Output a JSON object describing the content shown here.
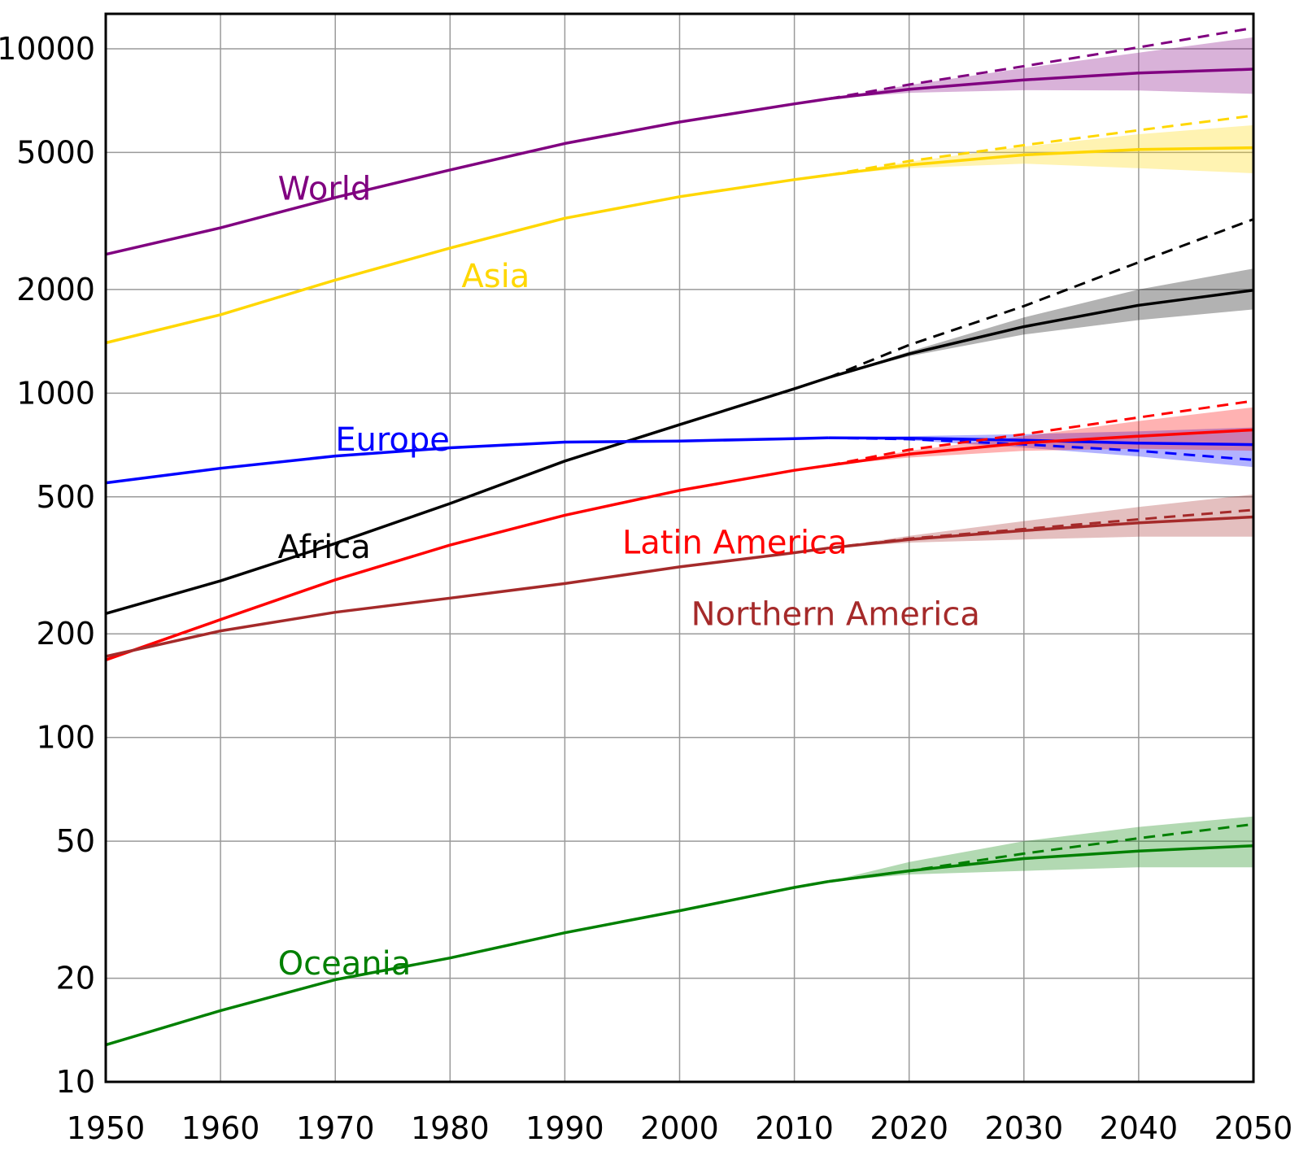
{
  "chart_data": {
    "type": "line",
    "title": "",
    "xlabel": "",
    "ylabel": "",
    "xlim": [
      1950,
      2050
    ],
    "ylim": [
      10,
      14000
    ],
    "y_scale": "log",
    "grid": true,
    "x_ticks": [
      1950,
      1960,
      1970,
      1980,
      1990,
      2000,
      2010,
      2020,
      2030,
      2040,
      2050
    ],
    "x_tick_labels": [
      "1950",
      "1960",
      "1970",
      "1980",
      "1990",
      "2000",
      "2010",
      "2020",
      "2030",
      "2040",
      "2050"
    ],
    "y_ticks": [
      10,
      20,
      50,
      100,
      200,
      500,
      1000,
      2000,
      5000,
      10000
    ],
    "y_tick_labels": [
      "10",
      "20",
      "50",
      "100",
      "200",
      "500",
      "1000",
      "2000",
      "5000",
      "10000"
    ],
    "series": [
      {
        "name": "World",
        "color": "#800080",
        "label_at": [
          1965,
          3650
        ],
        "history": {
          "x": [
            1950,
            1960,
            1970,
            1980,
            1990,
            2000,
            2010,
            2013
          ],
          "y": [
            2530,
            3020,
            3700,
            4450,
            5310,
            6130,
            6920,
            7160
          ]
        },
        "projection": {
          "x": [
            2013,
            2020,
            2030,
            2040,
            2050
          ],
          "y": [
            7160,
            7630,
            8120,
            8510,
            8730
          ]
        },
        "high": {
          "x": [
            2013,
            2020,
            2030,
            2040,
            2050
          ],
          "y": [
            7160,
            7850,
            8790,
            9750,
            10800
          ]
        },
        "low": {
          "x": [
            2013,
            2020,
            2030,
            2040,
            2050
          ],
          "y": [
            7160,
            7450,
            7580,
            7570,
            7400
          ]
        },
        "constant": {
          "x": [
            2013,
            2020,
            2030,
            2040,
            2050
          ],
          "y": [
            7160,
            7870,
            8900,
            10100,
            11500
          ]
        }
      },
      {
        "name": "Asia",
        "color": "#ffd700",
        "label_at": [
          1981,
          2030
        ],
        "history": {
          "x": [
            1950,
            1960,
            1970,
            1980,
            1990,
            2000,
            2010,
            2013
          ],
          "y": [
            1400,
            1690,
            2130,
            2640,
            3220,
            3720,
            4170,
            4300
          ]
        },
        "projection": {
          "x": [
            2013,
            2020,
            2030,
            2040,
            2050
          ],
          "y": [
            4300,
            4600,
            4920,
            5100,
            5160
          ]
        },
        "high": {
          "x": [
            2013,
            2020,
            2030,
            2040,
            2050
          ],
          "y": [
            4300,
            4700,
            5200,
            5650,
            6000
          ]
        },
        "low": {
          "x": [
            2013,
            2020,
            2030,
            2040,
            2050
          ],
          "y": [
            4300,
            4500,
            4640,
            4500,
            4350
          ]
        },
        "constant": {
          "x": [
            2013,
            2020,
            2030,
            2040,
            2050
          ],
          "y": [
            4300,
            4720,
            5250,
            5800,
            6400
          ]
        }
      },
      {
        "name": "Africa",
        "color": "#000000",
        "label_at": [
          1965,
          332
        ],
        "history": {
          "x": [
            1950,
            1960,
            1970,
            1980,
            1990,
            2000,
            2010,
            2013
          ],
          "y": [
            229,
            285,
            366,
            478,
            635,
            810,
            1030,
            1110
          ]
        },
        "projection": {
          "x": [
            2013,
            2020,
            2030,
            2040,
            2050
          ],
          "y": [
            1110,
            1300,
            1560,
            1800,
            1990
          ]
        },
        "high": {
          "x": [
            2013,
            2020,
            2030,
            2040,
            2050
          ],
          "y": [
            1110,
            1320,
            1660,
            2000,
            2300
          ]
        },
        "low": {
          "x": [
            2013,
            2020,
            2030,
            2040,
            2050
          ],
          "y": [
            1110,
            1280,
            1480,
            1630,
            1750
          ]
        },
        "constant": {
          "x": [
            2013,
            2020,
            2030,
            2040,
            2050
          ],
          "y": [
            1110,
            1380,
            1790,
            2400,
            3200
          ]
        }
      },
      {
        "name": "Europe",
        "color": "#0000ff",
        "label_at": [
          1970,
          680
        ],
        "history": {
          "x": [
            1950,
            1960,
            1970,
            1980,
            1990,
            2000,
            2010,
            2013
          ],
          "y": [
            549,
            605,
            657,
            694,
            721,
            726,
            738,
            742
          ]
        },
        "projection": {
          "x": [
            2013,
            2020,
            2030,
            2040,
            2050
          ],
          "y": [
            742,
            740,
            730,
            716,
            709
          ]
        },
        "high": {
          "x": [
            2013,
            2020,
            2030,
            2040,
            2050
          ],
          "y": [
            742,
            750,
            760,
            775,
            795
          ]
        },
        "low": {
          "x": [
            2013,
            2020,
            2030,
            2040,
            2050
          ],
          "y": [
            742,
            730,
            695,
            655,
            610
          ]
        },
        "constant": {
          "x": [
            2013,
            2020,
            2030,
            2040,
            2050
          ],
          "y": [
            742,
            735,
            710,
            680,
            640
          ]
        }
      },
      {
        "name": "Latin America",
        "color": "#ff0000",
        "label_at": [
          1995,
          342
        ],
        "history": {
          "x": [
            1950,
            1960,
            1970,
            1980,
            1990,
            2000,
            2010,
            2013
          ],
          "y": [
            168,
            220,
            287,
            362,
            442,
            522,
            597,
            617
          ]
        },
        "projection": {
          "x": [
            2013,
            2020,
            2030,
            2040,
            2050
          ],
          "y": [
            617,
            665,
            717,
            750,
            782
          ]
        },
        "high": {
          "x": [
            2013,
            2020,
            2030,
            2040,
            2050
          ],
          "y": [
            617,
            680,
            750,
            830,
            910
          ]
        },
        "low": {
          "x": [
            2013,
            2020,
            2030,
            2040,
            2050
          ],
          "y": [
            617,
            650,
            680,
            690,
            680
          ]
        },
        "constant": {
          "x": [
            2013,
            2020,
            2030,
            2040,
            2050
          ],
          "y": [
            617,
            685,
            760,
            850,
            950
          ]
        }
      },
      {
        "name": "Northern America",
        "color": "#a52a2a",
        "label_at": [
          2001,
          212
        ],
        "history": {
          "x": [
            1950,
            1960,
            1970,
            1980,
            1990,
            2000,
            2010,
            2013
          ],
          "y": [
            172,
            204,
            231,
            254,
            280,
            313,
            344,
            355
          ]
        },
        "projection": {
          "x": [
            2013,
            2020,
            2030,
            2040,
            2050
          ],
          "y": [
            355,
            376,
            399,
            420,
            437
          ]
        },
        "high": {
          "x": [
            2013,
            2020,
            2030,
            2040,
            2050
          ],
          "y": [
            355,
            385,
            425,
            467,
            508
          ]
        },
        "low": {
          "x": [
            2013,
            2020,
            2030,
            2040,
            2050
          ],
          "y": [
            355,
            368,
            376,
            383,
            383
          ]
        },
        "constant": {
          "x": [
            2013,
            2020,
            2030,
            2040,
            2050
          ],
          "y": [
            355,
            378,
            403,
            430,
            458
          ]
        }
      },
      {
        "name": "Oceania",
        "color": "#008000",
        "label_at": [
          1965,
          20.5
        ],
        "history": {
          "x": [
            1950,
            1960,
            1970,
            1980,
            1990,
            2000,
            2010,
            2013
          ],
          "y": [
            12.8,
            16.1,
            19.8,
            22.9,
            27.1,
            31.4,
            36.7,
            38.2
          ]
        },
        "projection": {
          "x": [
            2013,
            2020,
            2030,
            2040,
            2050
          ],
          "y": [
            38.2,
            41,
            44.5,
            46.8,
            48.5
          ]
        },
        "high": {
          "x": [
            2013,
            2020,
            2030,
            2040,
            2050
          ],
          "y": [
            38.2,
            43.5,
            50,
            55,
            59
          ]
        },
        "low": {
          "x": [
            2013,
            2020,
            2030,
            2040,
            2050
          ],
          "y": [
            38.2,
            40,
            41,
            42,
            42
          ]
        },
        "constant": {
          "x": [
            2013,
            2020,
            2030,
            2040,
            2050
          ],
          "y": [
            38.2,
            41,
            46,
            51,
            56
          ]
        }
      }
    ]
  }
}
